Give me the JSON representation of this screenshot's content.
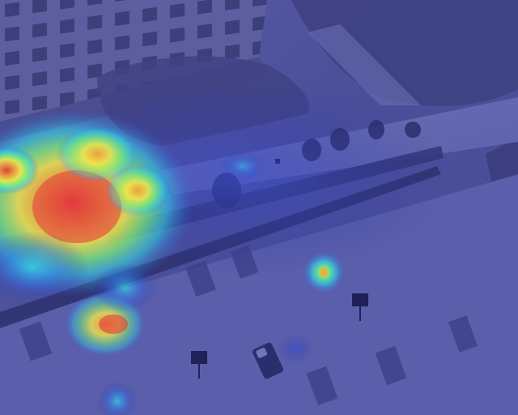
{
  "image": {
    "kind": "thermal-heatmap-overlay",
    "description_visible_text": "",
    "colormap": [
      "#2a2f9a",
      "#2f6ee6",
      "#34d4e6",
      "#7df07a",
      "#f3e84a",
      "#f29a3a",
      "#e53a3a"
    ],
    "base_tint": "#4a4f9c"
  }
}
